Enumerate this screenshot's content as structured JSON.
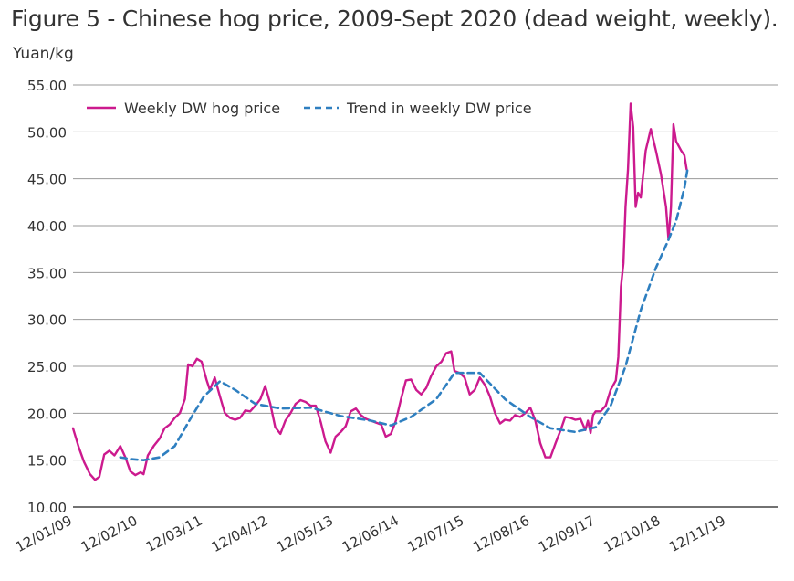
{
  "chart_data": {
    "type": "line",
    "title": "Figure 5 - Chinese hog price, 2009-Sept 2020 (dead weight, weekly).",
    "ylabel": "Yuan/kg",
    "xlabel": "",
    "ylim": [
      10,
      55
    ],
    "yticks": [
      "10.00",
      "15.00",
      "20.00",
      "25.00",
      "30.00",
      "35.00",
      "40.00",
      "45.00",
      "50.00",
      "55.00"
    ],
    "x_tick_labels": [
      "12/01/09",
      "12/02/10",
      "12/03/11",
      "12/04/12",
      "12/05/13",
      "12/06/14",
      "12/07/15",
      "12/08/16",
      "12/09/17",
      "12/10/18",
      "12/11/19"
    ],
    "x_tick_dates": [
      "2009-01-12",
      "2010-02-12",
      "2011-03-12",
      "2012-04-12",
      "2013-05-12",
      "2014-06-12",
      "2015-07-12",
      "2016-08-12",
      "2017-09-12",
      "2018-10-12",
      "2019-11-12"
    ],
    "xlim": [
      "2009-01-12",
      "2020-09-15"
    ],
    "grid": "horizontal",
    "legend_position": "top-left",
    "series": [
      {
        "name": "Weekly DW hog price",
        "color": "#cc1a8e",
        "style": "solid",
        "points": [
          [
            "2009-01-12",
            18.4
          ],
          [
            "2009-02-15",
            16.4
          ],
          [
            "2009-03-20",
            14.8
          ],
          [
            "2009-04-25",
            13.5
          ],
          [
            "2009-05-25",
            12.9
          ],
          [
            "2009-06-20",
            13.2
          ],
          [
            "2009-07-20",
            15.6
          ],
          [
            "2009-08-20",
            16.0
          ],
          [
            "2009-09-20",
            15.5
          ],
          [
            "2009-10-25",
            16.5
          ],
          [
            "2009-11-25",
            15.3
          ],
          [
            "2009-12-25",
            13.8
          ],
          [
            "2010-01-25",
            13.4
          ],
          [
            "2010-02-25",
            13.7
          ],
          [
            "2010-03-15",
            13.5
          ],
          [
            "2010-04-10",
            15.5
          ],
          [
            "2010-05-15",
            16.5
          ],
          [
            "2010-06-20",
            17.3
          ],
          [
            "2010-07-20",
            18.4
          ],
          [
            "2010-08-20",
            18.8
          ],
          [
            "2010-09-20",
            19.5
          ],
          [
            "2010-10-20",
            20.0
          ],
          [
            "2010-11-20",
            21.5
          ],
          [
            "2010-12-10",
            25.2
          ],
          [
            "2011-01-05",
            25.0
          ],
          [
            "2011-02-01",
            25.8
          ],
          [
            "2011-03-01",
            25.5
          ],
          [
            "2011-04-01",
            23.5
          ],
          [
            "2011-04-20",
            22.5
          ],
          [
            "2011-05-20",
            23.8
          ],
          [
            "2011-06-20",
            21.8
          ],
          [
            "2011-07-20",
            20.0
          ],
          [
            "2011-08-20",
            19.5
          ],
          [
            "2011-09-20",
            19.3
          ],
          [
            "2011-10-20",
            19.5
          ],
          [
            "2011-11-20",
            20.3
          ],
          [
            "2011-12-20",
            20.2
          ],
          [
            "2012-01-20",
            20.8
          ],
          [
            "2012-02-20",
            21.5
          ],
          [
            "2012-03-20",
            22.9
          ],
          [
            "2012-04-20",
            21.0
          ],
          [
            "2012-05-20",
            18.5
          ],
          [
            "2012-06-20",
            17.8
          ],
          [
            "2012-07-20",
            19.2
          ],
          [
            "2012-08-20",
            20.0
          ],
          [
            "2012-09-20",
            21.0
          ],
          [
            "2012-10-20",
            21.4
          ],
          [
            "2012-11-20",
            21.2
          ],
          [
            "2012-12-20",
            20.8
          ],
          [
            "2013-01-20",
            20.8
          ],
          [
            "2013-02-20",
            19.0
          ],
          [
            "2013-03-20",
            17.0
          ],
          [
            "2013-04-20",
            15.8
          ],
          [
            "2013-05-20",
            17.5
          ],
          [
            "2013-06-20",
            18.0
          ],
          [
            "2013-07-20",
            18.6
          ],
          [
            "2013-08-20",
            20.2
          ],
          [
            "2013-09-20",
            20.5
          ],
          [
            "2013-10-20",
            19.8
          ],
          [
            "2013-11-20",
            19.4
          ],
          [
            "2013-12-20",
            19.2
          ],
          [
            "2014-01-20",
            19.0
          ],
          [
            "2014-02-20",
            18.8
          ],
          [
            "2014-03-20",
            17.5
          ],
          [
            "2014-04-20",
            17.8
          ],
          [
            "2014-05-20",
            19.2
          ],
          [
            "2014-06-20",
            21.5
          ],
          [
            "2014-07-20",
            23.5
          ],
          [
            "2014-08-20",
            23.6
          ],
          [
            "2014-09-20",
            22.5
          ],
          [
            "2014-10-20",
            22.0
          ],
          [
            "2014-11-20",
            22.7
          ],
          [
            "2014-12-20",
            24.0
          ],
          [
            "2015-01-20",
            25.0
          ],
          [
            "2015-02-20",
            25.5
          ],
          [
            "2015-03-20",
            26.4
          ],
          [
            "2015-04-20",
            26.6
          ],
          [
            "2015-05-10",
            24.5
          ],
          [
            "2015-06-10",
            24.3
          ],
          [
            "2015-07-10",
            23.8
          ],
          [
            "2015-08-10",
            22.0
          ],
          [
            "2015-09-10",
            22.5
          ],
          [
            "2015-10-10",
            23.8
          ],
          [
            "2015-11-10",
            23.0
          ],
          [
            "2015-12-10",
            21.8
          ],
          [
            "2016-01-10",
            20.0
          ],
          [
            "2016-02-10",
            18.9
          ],
          [
            "2016-03-10",
            19.3
          ],
          [
            "2016-04-10",
            19.2
          ],
          [
            "2016-05-10",
            19.8
          ],
          [
            "2016-06-10",
            19.6
          ],
          [
            "2016-07-10",
            20.0
          ],
          [
            "2016-08-10",
            20.6
          ],
          [
            "2016-09-10",
            19.2
          ],
          [
            "2016-10-10",
            16.8
          ],
          [
            "2016-11-10",
            15.3
          ],
          [
            "2016-12-10",
            15.3
          ],
          [
            "2017-01-10",
            16.8
          ],
          [
            "2017-02-10",
            18.2
          ],
          [
            "2017-03-10",
            19.6
          ],
          [
            "2017-04-10",
            19.5
          ],
          [
            "2017-05-10",
            19.3
          ],
          [
            "2017-06-10",
            19.4
          ],
          [
            "2017-07-10",
            18.2
          ],
          [
            "2017-07-25",
            19.2
          ],
          [
            "2017-08-10",
            17.9
          ],
          [
            "2017-08-25",
            19.8
          ],
          [
            "2017-09-10",
            20.2
          ],
          [
            "2017-10-10",
            20.2
          ],
          [
            "2017-11-10",
            20.8
          ],
          [
            "2017-12-10",
            22.5
          ],
          [
            "2018-01-10",
            23.5
          ],
          [
            "2018-01-25",
            26.0
          ],
          [
            "2018-02-10",
            33.5
          ],
          [
            "2018-02-25",
            36.0
          ],
          [
            "2018-03-10",
            42.0
          ],
          [
            "2018-03-25",
            46.0
          ],
          [
            "2018-04-10",
            53.0
          ],
          [
            "2018-04-25",
            50.5
          ],
          [
            "2018-05-10",
            42.0
          ],
          [
            "2018-05-25",
            43.5
          ],
          [
            "2018-06-10",
            43.0
          ],
          [
            "2018-07-10",
            48.0
          ],
          [
            "2018-08-10",
            50.3
          ],
          [
            "2018-09-10",
            48.0
          ],
          [
            "2018-10-10",
            45.5
          ],
          [
            "2018-11-10",
            42.0
          ],
          [
            "2018-11-25",
            38.5
          ],
          [
            "2018-12-10",
            42.0
          ],
          [
            "2018-12-25",
            50.8
          ],
          [
            "2019-01-10",
            49.0
          ],
          [
            "2019-02-10",
            48.0
          ],
          [
            "2019-03-01",
            47.5
          ],
          [
            "2019-03-15",
            46.0
          ]
        ]
      },
      {
        "name": "Trend in weekly DW price",
        "color": "#2e7fc0",
        "style": "dashed",
        "points": [
          [
            "2009-10-25",
            15.3
          ],
          [
            "2010-01-01",
            15.1
          ],
          [
            "2010-03-15",
            15.0
          ],
          [
            "2010-06-20",
            15.3
          ],
          [
            "2010-09-20",
            16.5
          ],
          [
            "2010-12-10",
            19.0
          ],
          [
            "2011-03-15",
            21.8
          ],
          [
            "2011-06-20",
            23.4
          ],
          [
            "2011-09-20",
            22.5
          ],
          [
            "2012-01-20",
            21.0
          ],
          [
            "2012-06-20",
            20.5
          ],
          [
            "2012-12-20",
            20.6
          ],
          [
            "2013-06-20",
            19.7
          ],
          [
            "2013-12-20",
            19.2
          ],
          [
            "2014-04-20",
            18.7
          ],
          [
            "2014-08-20",
            19.6
          ],
          [
            "2015-01-20",
            21.5
          ],
          [
            "2015-05-10",
            24.3
          ],
          [
            "2015-10-10",
            24.3
          ],
          [
            "2016-03-10",
            21.5
          ],
          [
            "2016-08-10",
            19.6
          ],
          [
            "2016-12-10",
            18.4
          ],
          [
            "2017-05-10",
            18.0
          ],
          [
            "2017-09-10",
            18.5
          ],
          [
            "2017-12-10",
            20.8
          ],
          [
            "2018-03-10",
            25.0
          ],
          [
            "2018-06-10",
            31.0
          ],
          [
            "2018-09-10",
            35.5
          ],
          [
            "2018-11-25",
            38.5
          ],
          [
            "2019-01-10",
            40.5
          ],
          [
            "2019-03-01",
            44.0
          ],
          [
            "2019-03-20",
            46.0
          ]
        ]
      }
    ]
  }
}
